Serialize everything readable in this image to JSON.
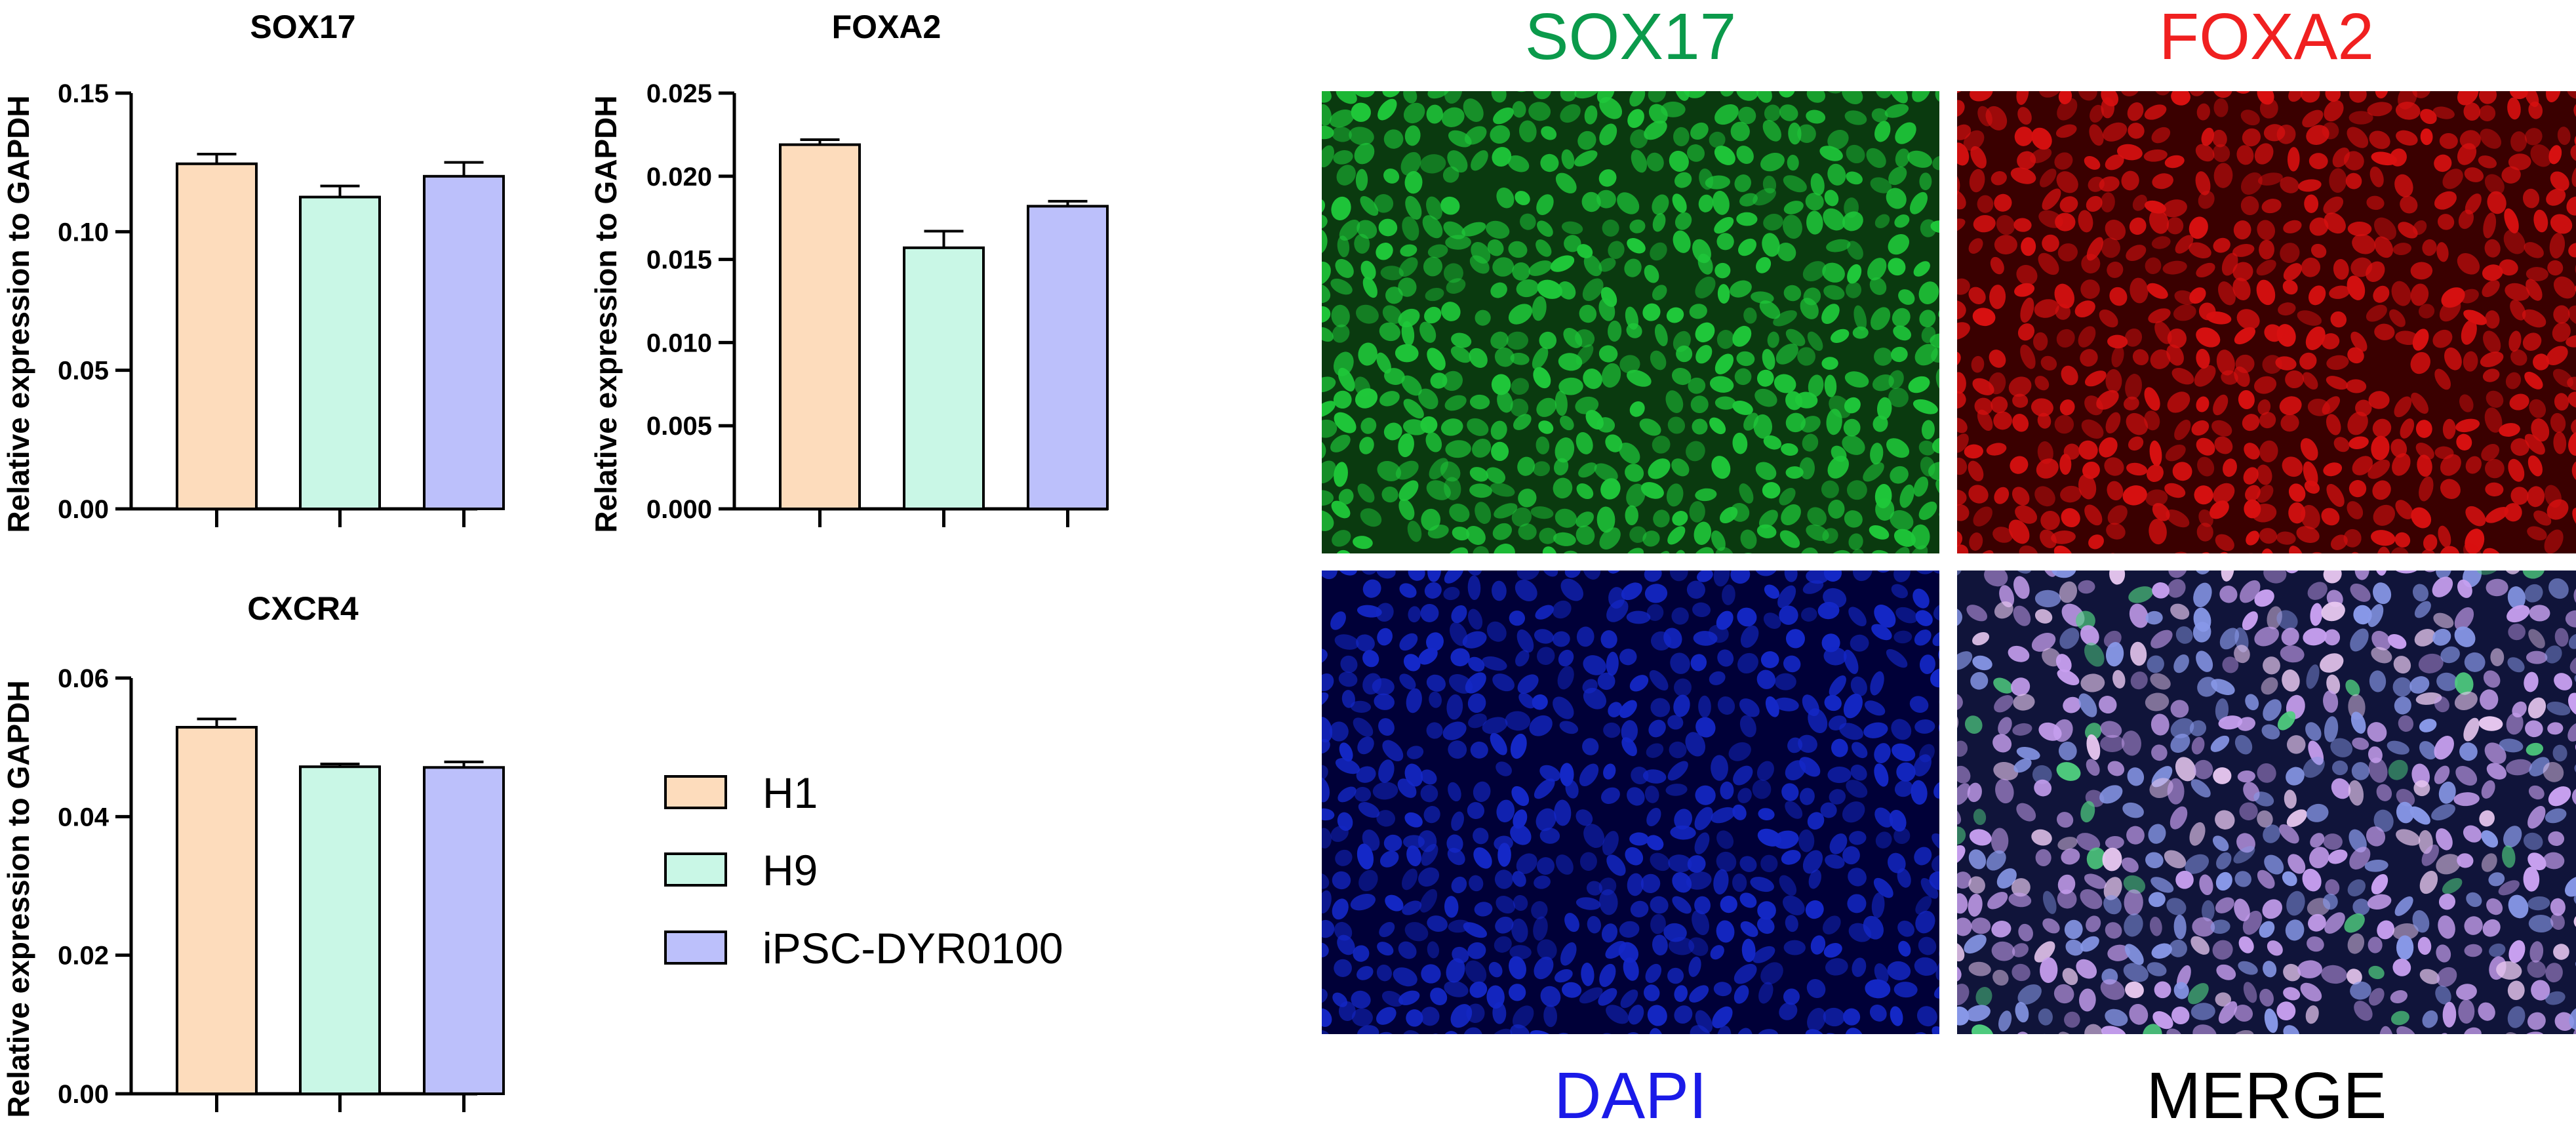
{
  "colors": {
    "H1": "#FDDCBC",
    "H9": "#C9F7E6",
    "iPSC-DYR0100": "#BCC0FB",
    "axis": "#000000",
    "label_sox17": "#0B9A4B",
    "label_foxa2": "#F02020",
    "label_dapi": "#1A1AE8",
    "label_merge": "#000000"
  },
  "legend": {
    "items": [
      {
        "name": "H1",
        "color": "#FDDCBC"
      },
      {
        "name": "H9",
        "color": "#C9F7E6"
      },
      {
        "name": "iPSC-DYR0100",
        "color": "#BCC0FB"
      }
    ]
  },
  "chart_data": [
    {
      "type": "bar",
      "title": "SOX17",
      "ylabel": "Relative expression to GAPDH",
      "categories": [
        "H1",
        "H9",
        "iPSC-DYR0100"
      ],
      "values": [
        0.1245,
        0.1125,
        0.12
      ],
      "errors": [
        0.0035,
        0.004,
        0.005
      ],
      "ylim": [
        0,
        0.15
      ],
      "yticks": [
        0,
        0.05,
        0.1,
        0.15
      ],
      "yticklabels": [
        "0.00",
        "0.05",
        "0.10",
        "0.15"
      ]
    },
    {
      "type": "bar",
      "title": "FOXA2",
      "ylabel": "Relative expression to GAPDH",
      "categories": [
        "H1",
        "H9",
        "iPSC-DYR0100"
      ],
      "values": [
        0.0219,
        0.0157,
        0.0182
      ],
      "errors": [
        0.0003,
        0.001,
        0.0003
      ],
      "ylim": [
        0,
        0.025
      ],
      "yticks": [
        0,
        0.005,
        0.01,
        0.015,
        0.02,
        0.025
      ],
      "yticklabels": [
        "0.000",
        "0.005",
        "0.010",
        "0.015",
        "0.020",
        "0.025"
      ]
    },
    {
      "type": "bar",
      "title": "CXCR4",
      "ylabel": "Relative expression to GAPDH",
      "categories": [
        "H1",
        "H9",
        "iPSC-DYR0100"
      ],
      "values": [
        0.0529,
        0.0472,
        0.0471
      ],
      "errors": [
        0.0012,
        0.0004,
        0.0008
      ],
      "ylim": [
        0,
        0.06
      ],
      "yticks": [
        0,
        0.02,
        0.04,
        0.06
      ],
      "yticklabels": [
        "0.00",
        "0.02",
        "0.04",
        "0.06"
      ]
    }
  ],
  "images": [
    {
      "label": "SOX17",
      "channel": "green",
      "color": "#0B9A4B",
      "base": "#0a3a0f",
      "cell": "#1fc83a"
    },
    {
      "label": "FOXA2",
      "channel": "red",
      "color": "#F02020",
      "base": "#3a0000",
      "cell": "#d81010"
    },
    {
      "label": "DAPI",
      "channel": "blue",
      "color": "#1A1AE8",
      "base": "#000038",
      "cell": "#1428c8"
    },
    {
      "label": "MERGE",
      "channel": "merge",
      "color": "#000000",
      "base": "#10143a",
      "cell": "#b090e8"
    }
  ]
}
